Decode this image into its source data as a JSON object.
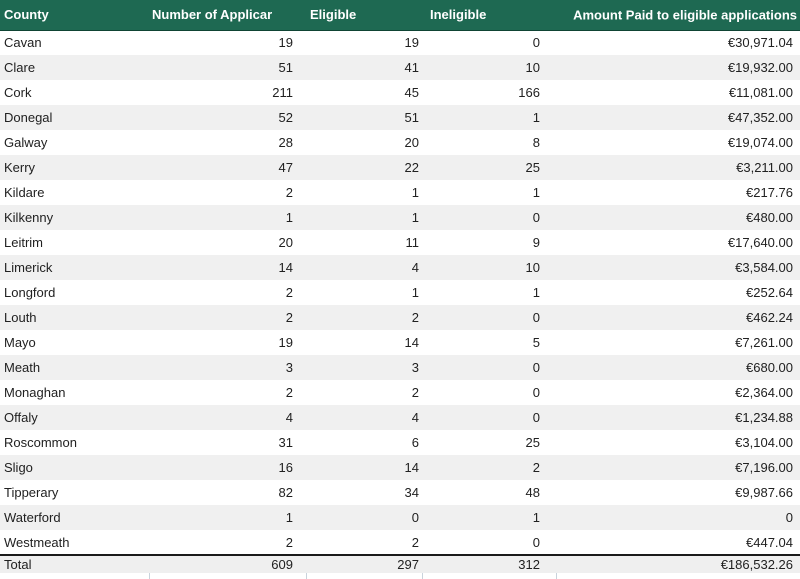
{
  "table": {
    "columns": [
      {
        "label": "County"
      },
      {
        "label": "Number of Applicar"
      },
      {
        "label": "Eligible"
      },
      {
        "label": "Ineligible"
      },
      {
        "label": "Amount Paid to eligible applications"
      }
    ],
    "rows": [
      {
        "county": "Cavan",
        "applications": "19",
        "eligible": "19",
        "ineligible": "0",
        "amount": "€30,971.04"
      },
      {
        "county": "Clare",
        "applications": "51",
        "eligible": "41",
        "ineligible": "10",
        "amount": "€19,932.00"
      },
      {
        "county": "Cork",
        "applications": "211",
        "eligible": "45",
        "ineligible": "166",
        "amount": "€11,081.00"
      },
      {
        "county": "Donegal",
        "applications": "52",
        "eligible": "51",
        "ineligible": "1",
        "amount": "€47,352.00"
      },
      {
        "county": "Galway",
        "applications": "28",
        "eligible": "20",
        "ineligible": "8",
        "amount": "€19,074.00"
      },
      {
        "county": "Kerry",
        "applications": "47",
        "eligible": "22",
        "ineligible": "25",
        "amount": "€3,211.00"
      },
      {
        "county": "Kildare",
        "applications": "2",
        "eligible": "1",
        "ineligible": "1",
        "amount": "€217.76"
      },
      {
        "county": "Kilkenny",
        "applications": "1",
        "eligible": "1",
        "ineligible": "0",
        "amount": "€480.00"
      },
      {
        "county": "Leitrim",
        "applications": "20",
        "eligible": "11",
        "ineligible": "9",
        "amount": "€17,640.00"
      },
      {
        "county": "Limerick",
        "applications": "14",
        "eligible": "4",
        "ineligible": "10",
        "amount": "€3,584.00"
      },
      {
        "county": "Longford",
        "applications": "2",
        "eligible": "1",
        "ineligible": "1",
        "amount": "€252.64"
      },
      {
        "county": "Louth",
        "applications": "2",
        "eligible": "2",
        "ineligible": "0",
        "amount": "€462.24"
      },
      {
        "county": "Mayo",
        "applications": "19",
        "eligible": "14",
        "ineligible": "5",
        "amount": "€7,261.00"
      },
      {
        "county": "Meath",
        "applications": "3",
        "eligible": "3",
        "ineligible": "0",
        "amount": "€680.00"
      },
      {
        "county": "Monaghan",
        "applications": "2",
        "eligible": "2",
        "ineligible": "0",
        "amount": "€2,364.00"
      },
      {
        "county": "Offaly",
        "applications": "4",
        "eligible": "4",
        "ineligible": "0",
        "amount": "€1,234.88"
      },
      {
        "county": "Roscommon",
        "applications": "31",
        "eligible": "6",
        "ineligible": "25",
        "amount": "€3,104.00"
      },
      {
        "county": "Sligo",
        "applications": "16",
        "eligible": "14",
        "ineligible": "2",
        "amount": "€7,196.00"
      },
      {
        "county": "Tipperary",
        "applications": "82",
        "eligible": "34",
        "ineligible": "48",
        "amount": "€9,987.66"
      },
      {
        "county": "Waterford",
        "applications": "1",
        "eligible": "0",
        "ineligible": "1",
        "amount": "0"
      },
      {
        "county": "Westmeath",
        "applications": "2",
        "eligible": "2",
        "ineligible": "0",
        "amount": "€447.04"
      }
    ],
    "total": {
      "label": "Total",
      "applications": "609",
      "eligible": "297",
      "ineligible": "312",
      "amount": "€186,532.26"
    }
  },
  "colors": {
    "header_bg": "#1E6952",
    "header_border": "#0F4434",
    "header_text": "#FFFFFF",
    "stripe": "#F0F0F0",
    "total_bg": "#EFEFEF",
    "separator": "#1A1A1A",
    "gridline": "#C9D3DC",
    "body_text": "#212121"
  }
}
